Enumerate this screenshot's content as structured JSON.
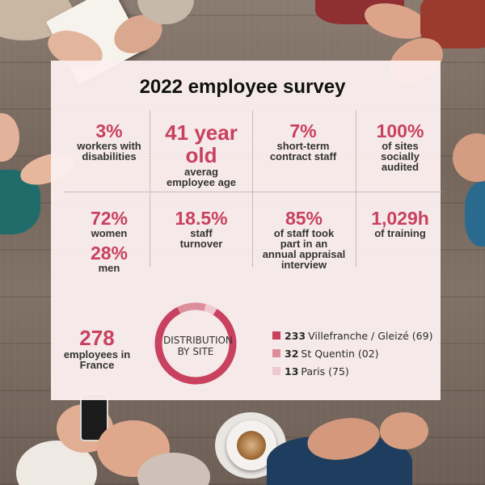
{
  "title": "2022 employee survey",
  "stats_row1": [
    {
      "value": "3%",
      "label_lines": [
        "workers with",
        "disabilities"
      ]
    },
    {
      "value_lines": [
        "41 year",
        "old"
      ],
      "label_lines": [
        "averag",
        "employee age"
      ]
    },
    {
      "value": "7%",
      "label_lines": [
        "short-term",
        "contract staff"
      ]
    },
    {
      "value": "100%",
      "label_lines": [
        "of sites",
        "socially",
        "audited"
      ]
    }
  ],
  "stats_row2": [
    {
      "value": "72%",
      "label": "women",
      "value2": "28%",
      "label2": "men"
    },
    {
      "value": "18.5%",
      "label_lines": [
        "staff",
        "turnover"
      ]
    },
    {
      "value": "85%",
      "label_lines": [
        "of staff took",
        "part in an",
        "annual appraisal",
        "interview"
      ]
    },
    {
      "value": "1,029h",
      "label_lines": [
        "of training"
      ]
    }
  ],
  "employees": {
    "value": "278",
    "label_lines": [
      "employees in",
      "France"
    ]
  },
  "distribution": {
    "label_lines": [
      "DISTRIBUTION",
      "BY SITE"
    ],
    "total": 278,
    "sites": [
      {
        "count": "233",
        "name": "Villefranche / Gleizé (69)",
        "color": "#c8415f"
      },
      {
        "count": "32",
        "name": "St Quentin (02)",
        "color": "#dc8f9b"
      },
      {
        "count": "13",
        "name": "Paris (75)",
        "color": "#f0c8cf"
      }
    ]
  },
  "colors": {
    "accent": "#c8415f",
    "panel": "#fbeeee"
  }
}
